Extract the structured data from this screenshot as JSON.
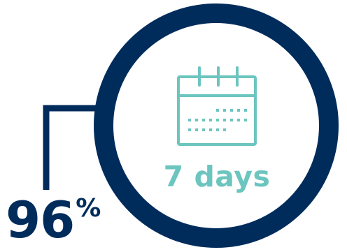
{
  "stat": {
    "value": "96",
    "unit": "%"
  },
  "duration": {
    "label": "7 days"
  },
  "icons": {
    "center": "calendar-icon"
  },
  "colors": {
    "navy": "#002c5c",
    "teal": "#6cc5bf",
    "background": "#ffffff"
  }
}
